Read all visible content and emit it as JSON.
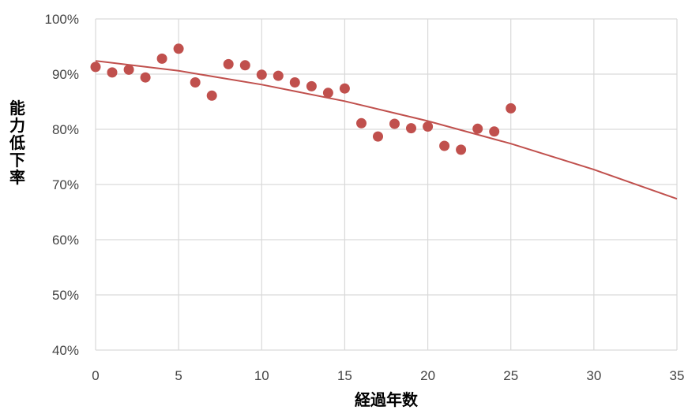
{
  "chart_data": {
    "type": "scatter",
    "xlabel": "経過年数",
    "ylabel": "能力低下率",
    "xlim": [
      0,
      35
    ],
    "ylim": [
      0.4,
      1.0
    ],
    "x_ticks": [
      "0",
      "5",
      "10",
      "15",
      "20",
      "25",
      "30",
      "35"
    ],
    "y_ticks": [
      "40%",
      "50%",
      "60%",
      "70%",
      "80%",
      "90%",
      "100%"
    ],
    "grid": true,
    "legend": "none",
    "colors": {
      "series": "#c0504d",
      "grid": "#d9d9d9"
    },
    "series": [
      {
        "x": [
          0,
          1,
          2,
          3,
          4,
          5,
          6,
          7,
          8,
          9,
          10,
          11,
          12,
          13,
          14,
          15,
          16,
          17,
          18,
          19,
          20,
          21,
          22,
          23,
          24,
          25
        ],
        "y": [
          0.913,
          0.903,
          0.908,
          0.894,
          0.928,
          0.946,
          0.885,
          0.861,
          0.918,
          0.916,
          0.899,
          0.897,
          0.885,
          0.878,
          0.866,
          0.874,
          0.811,
          0.787,
          0.81,
          0.802,
          0.805,
          0.77,
          0.763,
          0.801,
          0.796,
          0.838
        ]
      }
    ],
    "trendline": {
      "x": [
        0,
        5,
        10,
        15,
        20,
        25,
        30,
        35
      ],
      "y": [
        0.924,
        0.906,
        0.881,
        0.851,
        0.815,
        0.774,
        0.727,
        0.674
      ]
    }
  }
}
